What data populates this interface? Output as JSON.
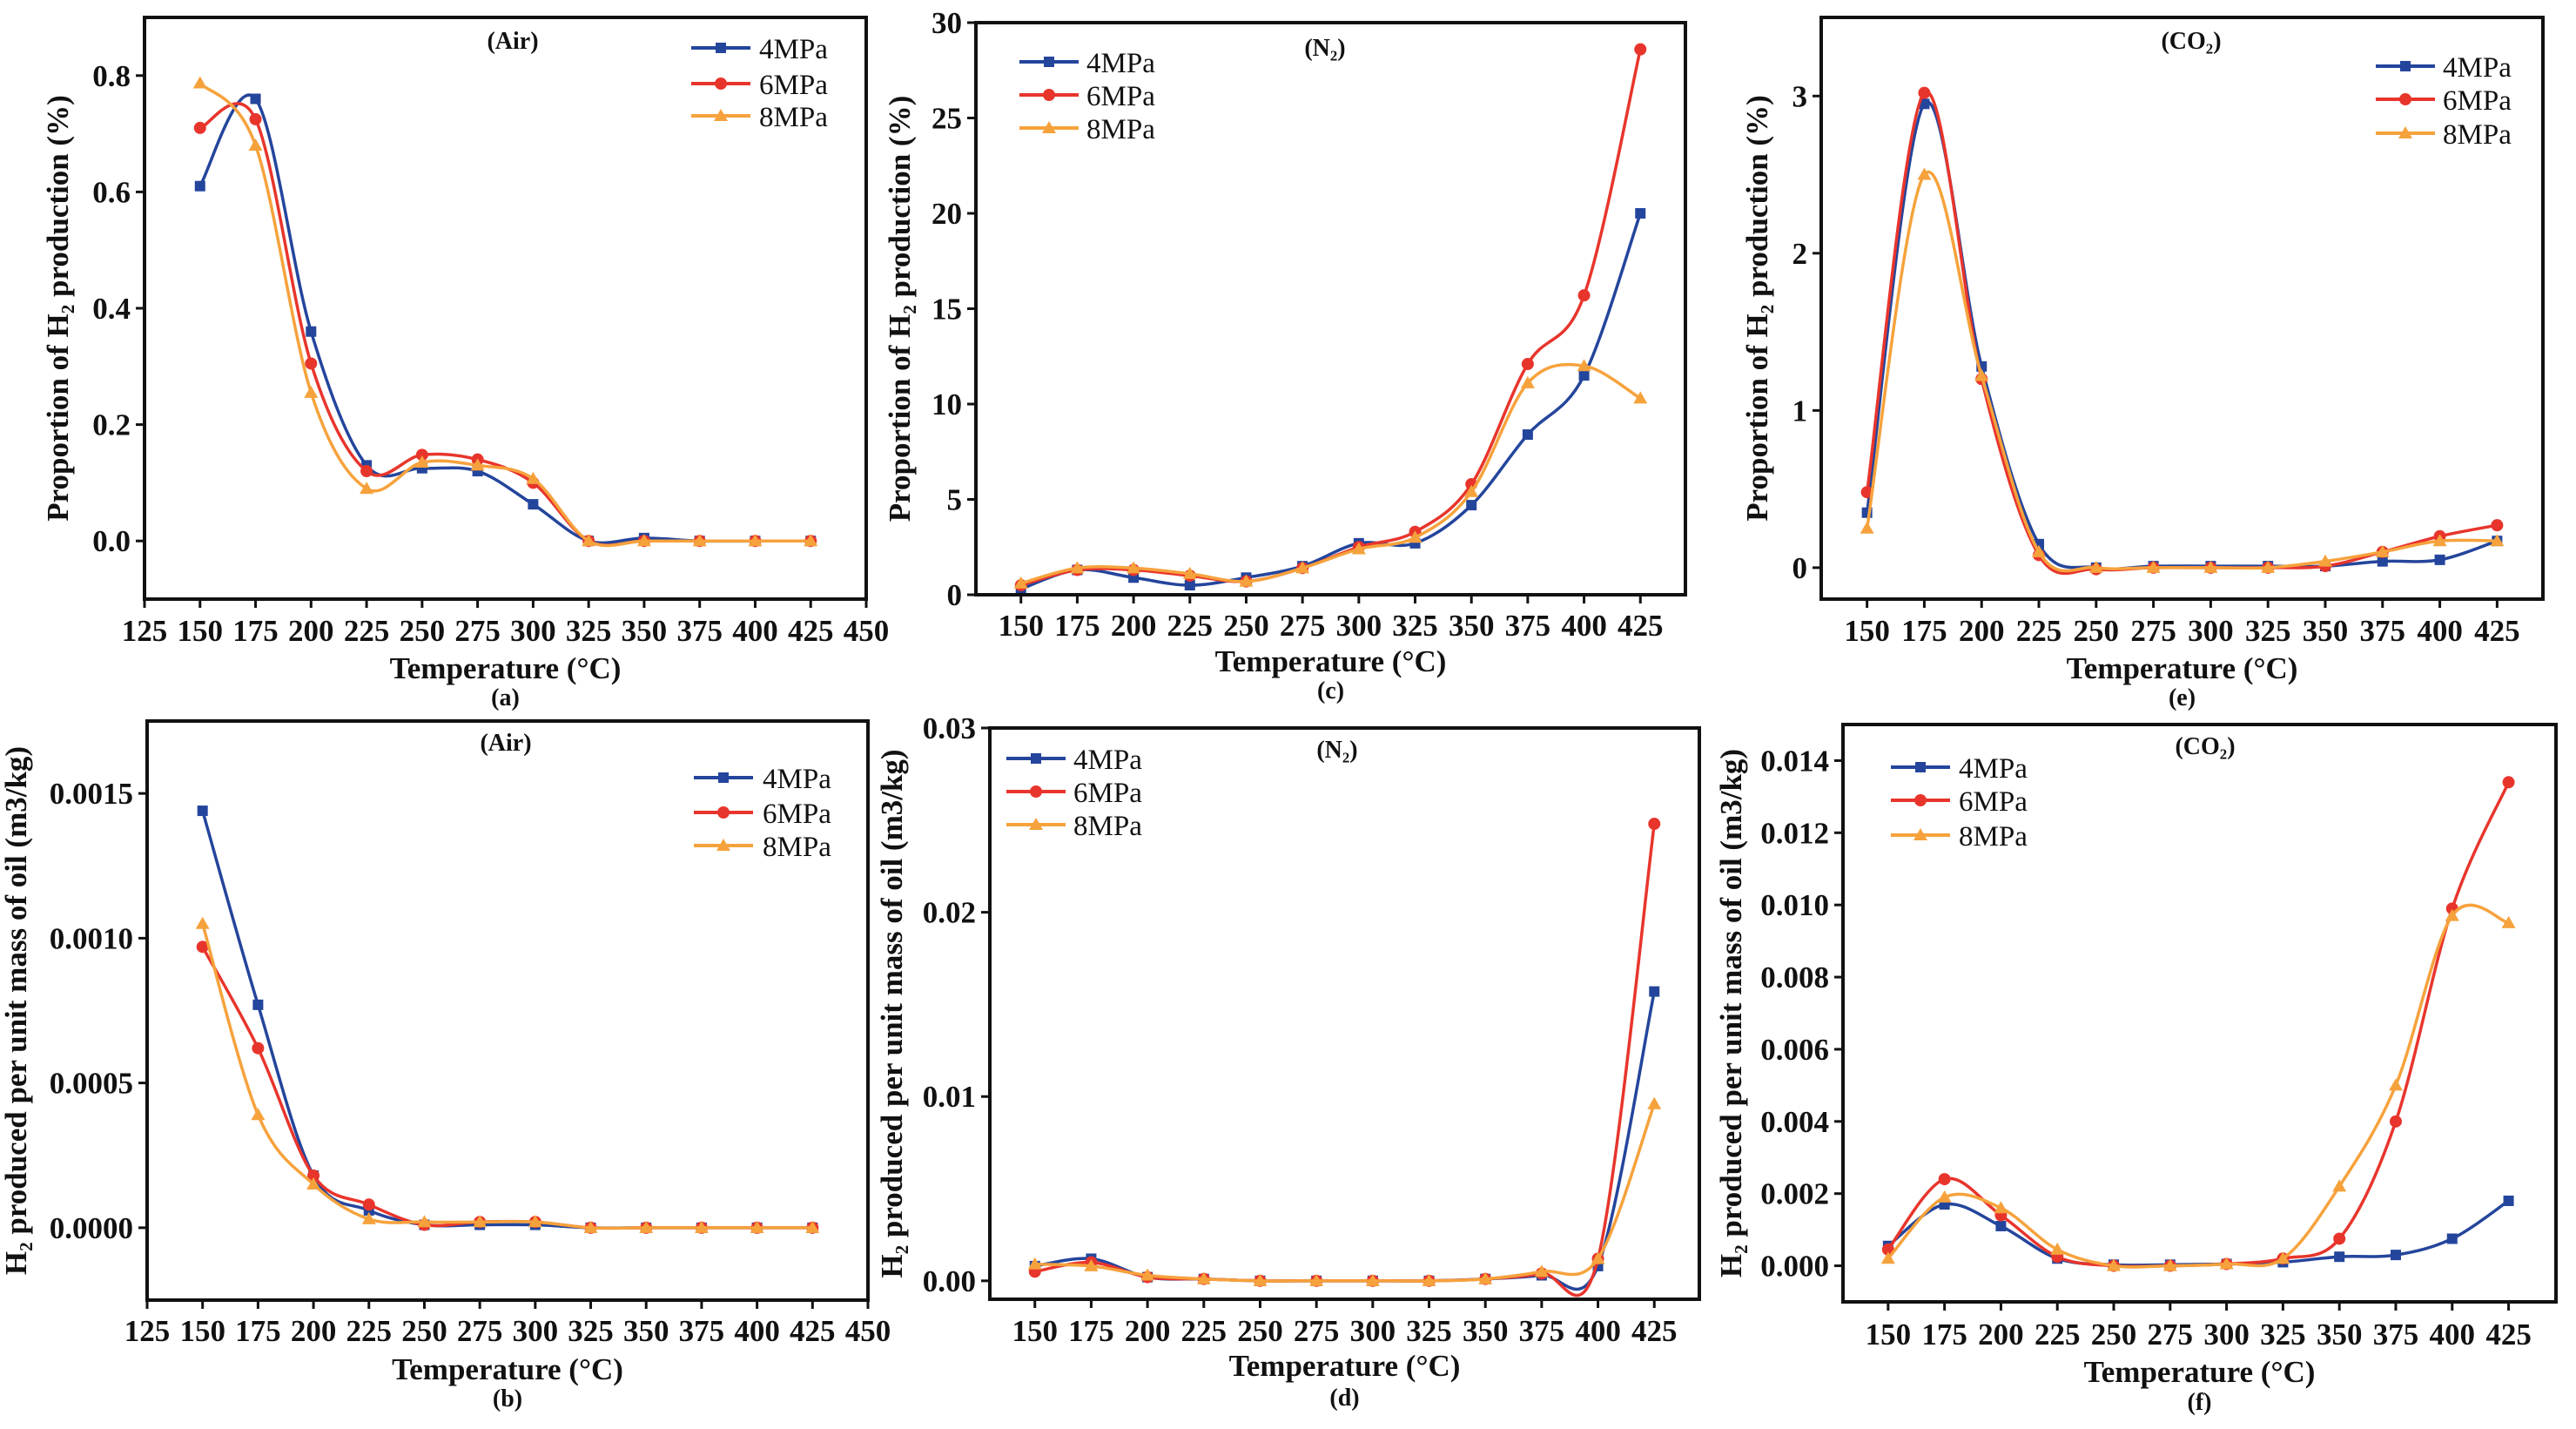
{
  "colors": {
    "4MPa": "#24459c",
    "6MPa": "#e8352c",
    "8MPa": "#f6a23c"
  },
  "chart_data": [
    {
      "id": "a",
      "type": "line",
      "caption": "(a)",
      "title": "(Air)",
      "xlabel": "Temperature (°C)",
      "ylabel": "Proportion of H₂ production (%)",
      "xlim": [
        125,
        450
      ],
      "ylim": [
        -0.1,
        0.9
      ],
      "xticks": [
        "125",
        "150",
        "175",
        "200",
        "225",
        "250",
        "275",
        "300",
        "325",
        "350",
        "375",
        "400",
        "425",
        "450"
      ],
      "yticks": [
        "0.0",
        "0.2",
        "0.4",
        "0.6",
        "0.8"
      ],
      "legend_position": "top-right",
      "x": [
        150,
        175,
        200,
        225,
        250,
        275,
        300,
        325,
        350,
        375,
        400,
        425
      ],
      "series": [
        {
          "name": "4MPa",
          "marker": "square",
          "values": [
            0.61,
            0.76,
            0.36,
            0.13,
            0.125,
            0.12,
            0.063,
            0,
            0.005,
            0,
            0,
            0
          ]
        },
        {
          "name": "6MPa",
          "marker": "circle",
          "values": [
            0.71,
            0.725,
            0.305,
            0.12,
            0.148,
            0.14,
            0.1,
            0,
            0,
            0,
            0,
            0
          ]
        },
        {
          "name": "8MPa",
          "marker": "triangle",
          "values": [
            0.787,
            0.68,
            0.255,
            0.09,
            0.135,
            0.13,
            0.107,
            0,
            0,
            0,
            0,
            0
          ]
        }
      ]
    },
    {
      "id": "c",
      "type": "line",
      "caption": "(c)",
      "title": "(N₂)",
      "xlabel": "Temperature (°C)",
      "ylabel": "Proportion of H₂ production (%)",
      "xlim": [
        130,
        445
      ],
      "ylim": [
        0,
        30
      ],
      "xticks": [
        "150",
        "175",
        "200",
        "225",
        "250",
        "275",
        "300",
        "325",
        "350",
        "375",
        "400",
        "425"
      ],
      "yticks": [
        "0",
        "5",
        "10",
        "15",
        "20",
        "25",
        "30"
      ],
      "legend_position": "top-left",
      "x": [
        150,
        175,
        200,
        225,
        250,
        275,
        300,
        325,
        350,
        375,
        400,
        425
      ],
      "series": [
        {
          "name": "4MPa",
          "marker": "square",
          "values": [
            0.3,
            1.3,
            0.9,
            0.5,
            0.9,
            1.5,
            2.7,
            2.7,
            4.7,
            8.4,
            11.5,
            20.0
          ]
        },
        {
          "name": "6MPa",
          "marker": "circle",
          "values": [
            0.5,
            1.3,
            1.3,
            1.0,
            0.7,
            1.4,
            2.5,
            3.3,
            5.8,
            12.1,
            15.7,
            28.6
          ]
        },
        {
          "name": "8MPa",
          "marker": "triangle",
          "values": [
            0.6,
            1.4,
            1.4,
            1.1,
            0.7,
            1.4,
            2.4,
            3.0,
            5.4,
            11.1,
            12.0,
            10.3
          ]
        }
      ]
    },
    {
      "id": "e",
      "type": "line",
      "caption": "(e)",
      "title": "(CO₂)",
      "xlabel": "Temperature (°C)",
      "ylabel": "Proportion of H₂ production (%)",
      "xlim": [
        130,
        445
      ],
      "ylim": [
        -0.2,
        3.5
      ],
      "xticks": [
        "150",
        "175",
        "200",
        "225",
        "250",
        "275",
        "300",
        "325",
        "350",
        "375",
        "400",
        "425"
      ],
      "yticks": [
        "0",
        "1",
        "2",
        "3"
      ],
      "legend_position": "top-right",
      "x": [
        150,
        175,
        200,
        225,
        250,
        275,
        300,
        325,
        350,
        375,
        400,
        425
      ],
      "series": [
        {
          "name": "4MPa",
          "marker": "square",
          "values": [
            0.35,
            2.95,
            1.28,
            0.15,
            0,
            0.01,
            0.01,
            0.01,
            0.01,
            0.04,
            0.05,
            0.17
          ]
        },
        {
          "name": "6MPa",
          "marker": "circle",
          "values": [
            0.48,
            3.02,
            1.2,
            0.08,
            -0.01,
            0,
            0,
            0,
            0.01,
            0.1,
            0.2,
            0.27
          ]
        },
        {
          "name": "8MPa",
          "marker": "triangle",
          "values": [
            0.25,
            2.5,
            1.22,
            0.1,
            0,
            0,
            0,
            0,
            0.04,
            0.1,
            0.17,
            0.17
          ]
        }
      ]
    },
    {
      "id": "b",
      "type": "line",
      "caption": "(b)",
      "title": "(Air)",
      "xlabel": "Temperature (°C)",
      "ylabel": "H₂ produced per unit mass of oil (m3/kg)",
      "xlim": [
        125,
        450
      ],
      "ylim": [
        -0.00025,
        0.00175
      ],
      "xticks": [
        "125",
        "150",
        "175",
        "200",
        "225",
        "250",
        "275",
        "300",
        "325",
        "350",
        "375",
        "400",
        "425",
        "450"
      ],
      "yticks": [
        "0.0000",
        "0.0005",
        "0.0010",
        "0.0015"
      ],
      "legend_position": "top-right",
      "x": [
        150,
        175,
        200,
        225,
        250,
        275,
        300,
        325,
        350,
        375,
        400,
        425
      ],
      "series": [
        {
          "name": "4MPa",
          "marker": "square",
          "values": [
            0.00144,
            0.00077,
            0.00018,
            6e-05,
            1e-05,
            1e-05,
            1e-05,
            0,
            0,
            0,
            0,
            0
          ]
        },
        {
          "name": "6MPa",
          "marker": "circle",
          "values": [
            0.00097,
            0.00062,
            0.00018,
            8e-05,
            1e-05,
            2e-05,
            2e-05,
            0,
            0,
            0,
            0,
            0
          ]
        },
        {
          "name": "8MPa",
          "marker": "triangle",
          "values": [
            0.00105,
            0.00039,
            0.00015,
            3e-05,
            2e-05,
            2e-05,
            2e-05,
            0,
            0,
            0,
            0,
            0
          ]
        }
      ]
    },
    {
      "id": "d",
      "type": "line",
      "caption": "(d)",
      "title": "(N₂)",
      "xlabel": "Temperature (°C)",
      "ylabel": "H₂ produced per unit mass of oil (m3/kg)",
      "xlim": [
        130,
        445
      ],
      "ylim": [
        -0.001,
        0.03
      ],
      "xticks": [
        "150",
        "175",
        "200",
        "225",
        "250",
        "275",
        "300",
        "325",
        "350",
        "375",
        "400",
        "425"
      ],
      "yticks": [
        "0.00",
        "0.01",
        "0.02",
        "0.03"
      ],
      "legend_position": "top-left",
      "x": [
        150,
        175,
        200,
        225,
        250,
        275,
        300,
        325,
        350,
        375,
        400,
        425
      ],
      "series": [
        {
          "name": "4MPa",
          "marker": "square",
          "values": [
            0.0008,
            0.0012,
            0.0002,
            0.0001,
            0,
            0,
            0,
            0,
            0.0001,
            0.0003,
            0.0008,
            0.0157
          ]
        },
        {
          "name": "6MPa",
          "marker": "circle",
          "values": [
            0.0005,
            0.001,
            0.0002,
            0.0001,
            0,
            0,
            0,
            0,
            0.0001,
            0.0004,
            0.0012,
            0.0248
          ]
        },
        {
          "name": "8MPa",
          "marker": "triangle",
          "values": [
            0.0009,
            0.0008,
            0.0003,
            0.0001,
            0,
            0,
            0,
            0,
            0.0001,
            0.0005,
            0.0012,
            0.0096
          ]
        }
      ]
    },
    {
      "id": "f",
      "type": "line",
      "caption": "(f)",
      "title": "(CO₂)",
      "xlabel": "Temperature (°C)",
      "ylabel": "H₂ produced per unit mass of oil (m3/kg)",
      "xlim": [
        130,
        446
      ],
      "ylim": [
        -0.001,
        0.015
      ],
      "xticks": [
        "150",
        "175",
        "200",
        "225",
        "250",
        "275",
        "300",
        "325",
        "350",
        "375",
        "400",
        "425"
      ],
      "yticks": [
        "0.000",
        "0.002",
        "0.004",
        "0.006",
        "0.008",
        "0.010",
        "0.012",
        "0.014"
      ],
      "legend_position": "top-left",
      "x": [
        150,
        175,
        200,
        225,
        250,
        275,
        300,
        325,
        350,
        375,
        400,
        425
      ],
      "series": [
        {
          "name": "4MPa",
          "marker": "square",
          "values": [
            0.00055,
            0.0017,
            0.0011,
            0.0002,
            3e-05,
            3e-05,
            5e-05,
            0.0001,
            0.00025,
            0.0003,
            0.00075,
            0.0018
          ]
        },
        {
          "name": "6MPa",
          "marker": "circle",
          "values": [
            0.00045,
            0.0024,
            0.0014,
            0.00025,
            0,
            0,
            5e-05,
            0.0002,
            0.00075,
            0.004,
            0.0099,
            0.0134
          ]
        },
        {
          "name": "8MPa",
          "marker": "triangle",
          "values": [
            0.0002,
            0.0019,
            0.0016,
            0.00045,
            0,
            0,
            5e-05,
            0.0002,
            0.0022,
            0.005,
            0.0097,
            0.0095
          ]
        }
      ]
    }
  ]
}
